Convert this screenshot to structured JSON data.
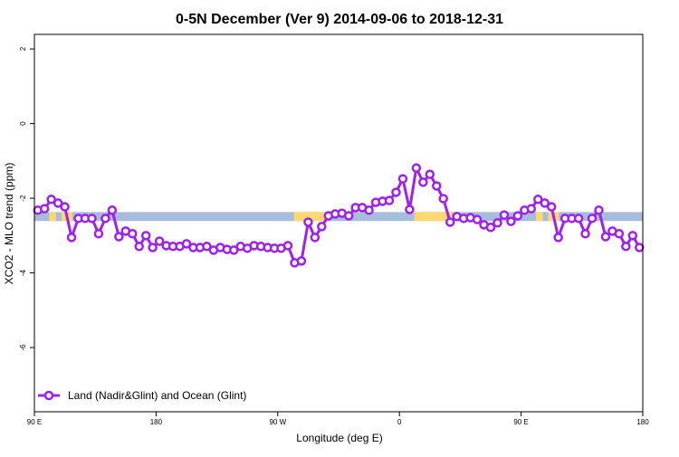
{
  "chart_data": {
    "type": "line",
    "title": "0-5N December (Ver 9)   2014-09-06 to 2018-12-31",
    "xlabel": "Longitude (deg E)",
    "ylabel": "XCO2 - MLO trend (ppm)",
    "xlim": [
      90,
      540
    ],
    "ylim": [
      -7.72,
      2.39
    ],
    "x_ticks": [
      {
        "value": 90,
        "label": "90 E"
      },
      {
        "value": 180,
        "label": "180"
      },
      {
        "value": 270,
        "label": "90 W"
      },
      {
        "value": 360,
        "label": "0"
      },
      {
        "value": 450,
        "label": "90 E"
      },
      {
        "value": 540,
        "label": "180"
      }
    ],
    "y_ticks": [
      {
        "value": 2,
        "label": "2"
      },
      {
        "value": 0,
        "label": "0"
      },
      {
        "value": -2,
        "label": "-2"
      },
      {
        "value": -4,
        "label": "-4"
      },
      {
        "value": -6,
        "label": "-6"
      }
    ],
    "grid": false,
    "legend_position": "bottom-left",
    "series": [
      {
        "name": "Land (Nadir&Glint) and Ocean (Glint)",
        "color": "#a020f0",
        "x_start": 92.5,
        "x_step": 5,
        "repeat_period_points": 72,
        "values": [
          -2.32,
          -2.28,
          -2.03,
          -2.13,
          -2.23,
          -3.05,
          -2.54,
          -2.54,
          -2.54,
          -2.95,
          -2.54,
          -2.32,
          -3.03,
          -2.88,
          -2.95,
          -3.29,
          -3.0,
          -3.32,
          -3.15,
          -3.27,
          -3.29,
          -3.29,
          -3.22,
          -3.32,
          -3.32,
          -3.29,
          -3.39,
          -3.32,
          -3.37,
          -3.39,
          -3.29,
          -3.34,
          -3.27,
          -3.29,
          -3.32,
          -3.34,
          -3.34,
          -3.27,
          -3.73,
          -3.68,
          -2.64,
          -3.05,
          -2.76,
          -2.47,
          -2.42,
          -2.4,
          -2.47,
          -2.25,
          -2.25,
          -2.32,
          -2.11,
          -2.08,
          -2.06,
          -1.84,
          -1.48,
          -2.3,
          -1.19,
          -1.57,
          -1.36,
          -1.67,
          -2.01,
          -2.64,
          -2.49,
          -2.54,
          -2.52,
          -2.57,
          -2.71,
          -2.78,
          -2.66,
          -2.45,
          -2.62,
          -2.47
        ]
      }
    ],
    "surface_band": {
      "y_range": [
        -2.61,
        -2.37
      ],
      "land_color": "#ffd870",
      "ocean_color": "#a6bddb",
      "land_segments": [
        [
          101,
          106
        ],
        [
          110,
          118
        ],
        [
          282,
          307
        ],
        [
          371,
          399
        ],
        [
          461,
          466
        ],
        [
          470,
          478
        ]
      ]
    }
  }
}
